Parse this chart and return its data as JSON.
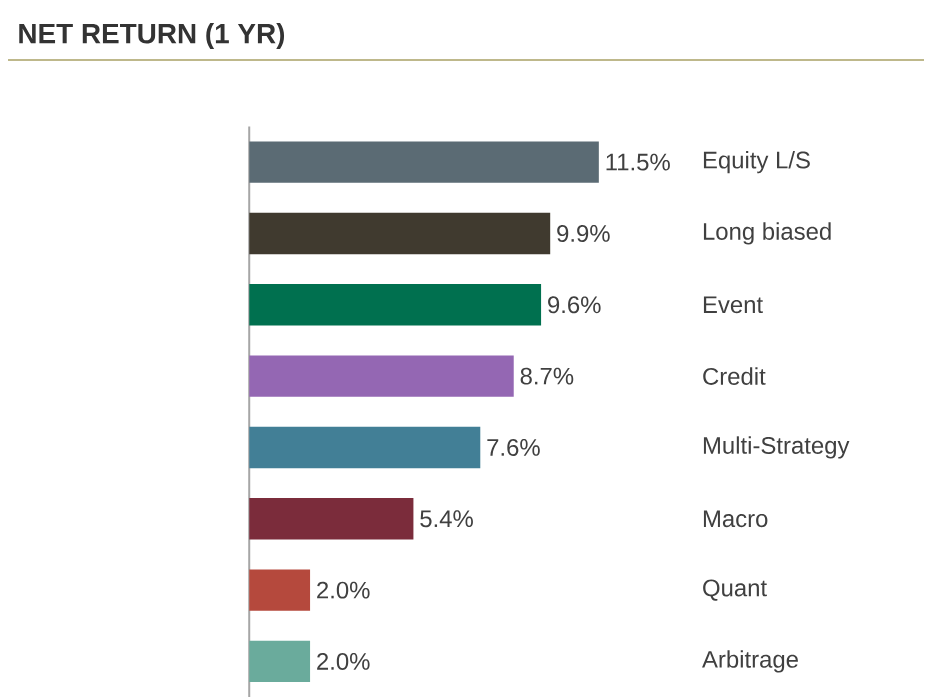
{
  "chart_data": {
    "type": "bar",
    "orientation": "horizontal",
    "title": "NET RETURN (1 YR)",
    "categories": [
      "Equity L/S",
      "Long biased",
      "Event",
      "Credit",
      "Multi-Strategy",
      "Macro",
      "Quant",
      "Arbitrage"
    ],
    "values": [
      11.5,
      9.9,
      9.6,
      8.7,
      7.6,
      5.4,
      2.0,
      2.0
    ],
    "value_labels": [
      "11.5%",
      "9.9%",
      "9.6%",
      "8.7%",
      "7.6%",
      "5.4%",
      "2.0%",
      "2.0%"
    ],
    "colors": [
      "#5b6b74",
      "#403a2f",
      "#00704f",
      "#9467b3",
      "#427f96",
      "#7b2c3b",
      "#b5493d",
      "#6aab9c"
    ]
  }
}
